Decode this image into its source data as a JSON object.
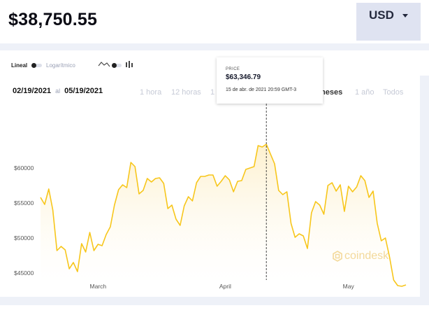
{
  "header": {
    "price_symbol": "$",
    "price_value": "38,750.55",
    "currency": "USD"
  },
  "controls": {
    "scale_linear": "Lineal",
    "scale_log": "Logarítmico",
    "date_from": "02/19/2021",
    "date_sep": "al",
    "date_to": "05/19/2021",
    "periods": [
      "1 hora",
      "12 horas",
      "1 d",
      "meses",
      "1 año",
      "Todos"
    ],
    "active_period": "meses"
  },
  "tooltip": {
    "label": "PRICE",
    "price": "$63,346.79",
    "date": "15 de abr. de 2021 20:59 GMT-3"
  },
  "logo_text": "coindesk",
  "colors": {
    "line": "#f7c61b",
    "fill": "#fdf3d6",
    "frame": "#eef1f8",
    "currency_bg": "#dfe3f1",
    "logo": "#f3d99a"
  },
  "chart_data": {
    "type": "line",
    "title": "",
    "xlabel": "",
    "ylabel": "",
    "x_tick_labels": [
      "March",
      "April",
      "May"
    ],
    "y_tick_values": [
      60000,
      55000,
      50000,
      45000
    ],
    "y_tick_labels": [
      "$60000",
      "$55000",
      "$50000",
      "$45000"
    ],
    "ylim": [
      42000,
      68000
    ],
    "grid": false,
    "legend": "none",
    "x": [
      "2021-02-19",
      "2021-02-20",
      "2021-02-21",
      "2021-02-22",
      "2021-02-23",
      "2021-02-24",
      "2021-02-25",
      "2021-02-26",
      "2021-02-27",
      "2021-02-28",
      "2021-03-01",
      "2021-03-02",
      "2021-03-03",
      "2021-03-04",
      "2021-03-05",
      "2021-03-06",
      "2021-03-07",
      "2021-03-08",
      "2021-03-09",
      "2021-03-10",
      "2021-03-11",
      "2021-03-12",
      "2021-03-13",
      "2021-03-14",
      "2021-03-15",
      "2021-03-16",
      "2021-03-17",
      "2021-03-18",
      "2021-03-19",
      "2021-03-20",
      "2021-03-21",
      "2021-03-22",
      "2021-03-23",
      "2021-03-24",
      "2021-03-25",
      "2021-03-26",
      "2021-03-27",
      "2021-03-28",
      "2021-03-29",
      "2021-03-30",
      "2021-03-31",
      "2021-04-01",
      "2021-04-02",
      "2021-04-03",
      "2021-04-04",
      "2021-04-05",
      "2021-04-06",
      "2021-04-07",
      "2021-04-08",
      "2021-04-09",
      "2021-04-10",
      "2021-04-11",
      "2021-04-12",
      "2021-04-13",
      "2021-04-14",
      "2021-04-15",
      "2021-04-16",
      "2021-04-17",
      "2021-04-18",
      "2021-04-19",
      "2021-04-20",
      "2021-04-21",
      "2021-04-22",
      "2021-04-23",
      "2021-04-24",
      "2021-04-25",
      "2021-04-26",
      "2021-04-27",
      "2021-04-28",
      "2021-04-29",
      "2021-04-30",
      "2021-05-01",
      "2021-05-02",
      "2021-05-03",
      "2021-05-04",
      "2021-05-05",
      "2021-05-06",
      "2021-05-07",
      "2021-05-08",
      "2021-05-09",
      "2021-05-10",
      "2021-05-11",
      "2021-05-12",
      "2021-05-13",
      "2021-05-14",
      "2021-05-15",
      "2021-05-16",
      "2021-05-17",
      "2021-05-18",
      "2021-05-19"
    ],
    "series": [
      {
        "values": [
          55800,
          54800,
          57000,
          54000,
          48200,
          48800,
          48300,
          45600,
          46500,
          45200,
          49200,
          48000,
          50800,
          48200,
          49100,
          48900,
          50500,
          51600,
          54700,
          56900,
          57600,
          57200,
          60800,
          60200,
          56300,
          56800,
          58500,
          58000,
          58500,
          58600,
          57800,
          54200,
          54700,
          52700,
          51800,
          54600,
          55900,
          55300,
          57900,
          58800,
          58800,
          59000,
          59000,
          57400,
          58100,
          58900,
          58300,
          56600,
          58100,
          58200,
          59800,
          60000,
          60200,
          63200,
          63000,
          63400,
          62000,
          60600,
          56800,
          56200,
          56600,
          52100,
          50100,
          50600,
          50300,
          48500,
          53600,
          55200,
          54700,
          53400,
          57500,
          57900,
          56700,
          57600,
          53800,
          57400,
          56600,
          57300,
          58900,
          58200,
          55800,
          56700,
          52100,
          49600,
          50000,
          47300,
          44000,
          43200,
          43100,
          43300
        ]
      }
    ]
  }
}
